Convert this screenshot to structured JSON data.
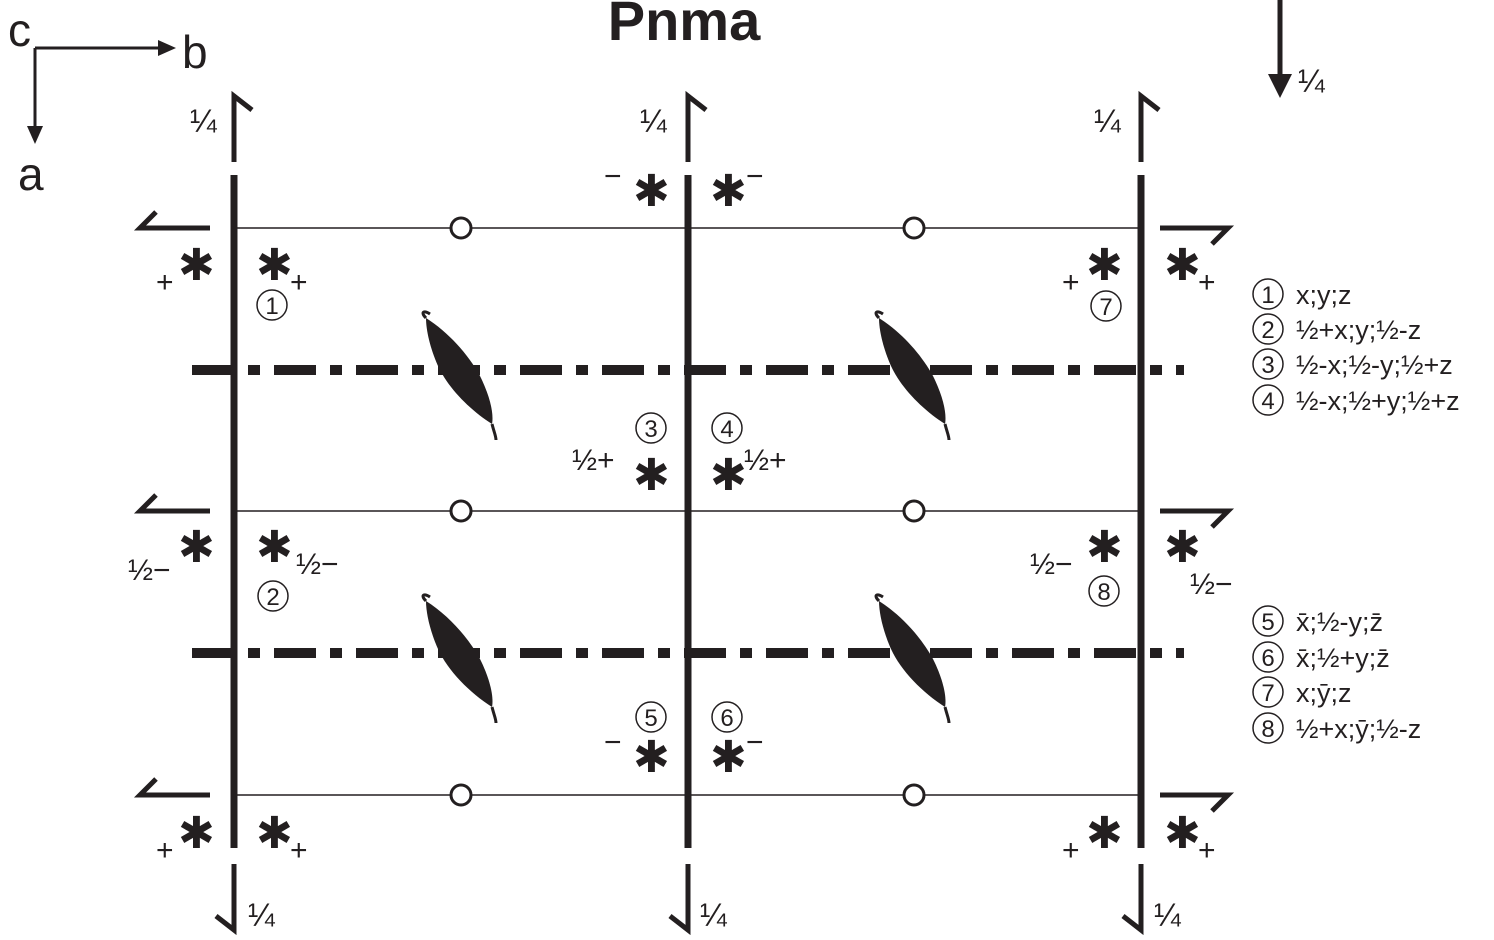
{
  "title": "Pnma",
  "axes": {
    "c": "c",
    "b": "b",
    "a": "a"
  },
  "quarter": "¼",
  "glide_marker": "¼",
  "asterisk": "✱",
  "atoms": {
    "p1": {
      "num": "1",
      "sign": "+"
    },
    "p2": {
      "num": "2",
      "sign": "½−"
    },
    "p3": {
      "num": "3",
      "sign": "½+"
    },
    "p4": {
      "num": "4",
      "sign": "½+"
    },
    "p5": {
      "num": "5",
      "sign": "−"
    },
    "p6": {
      "num": "6",
      "sign": "−"
    },
    "p7": {
      "num": "7",
      "sign": "+"
    },
    "p8": {
      "num": "8",
      "sign": "½−"
    },
    "top_mid_sign": "−",
    "plus": "+",
    "half_minus": "½−"
  },
  "legend": [
    {
      "num": "1",
      "text": "x;y;z"
    },
    {
      "num": "2",
      "text": "½+x;y;½-z"
    },
    {
      "num": "3",
      "text": "½-x;½-y;½+z"
    },
    {
      "num": "4",
      "text": "½-x;½+y;½+z"
    },
    {
      "num": "5",
      "text": "x̄;½-y;z̄"
    },
    {
      "num": "6",
      "text": "x̄;½+y;z̄"
    },
    {
      "num": "7",
      "text": "x;ȳ;z"
    },
    {
      "num": "8",
      "text": "½+x;ȳ;½-z"
    }
  ],
  "colors": {
    "ink": "#231f20",
    "paper": "#ffffff"
  }
}
